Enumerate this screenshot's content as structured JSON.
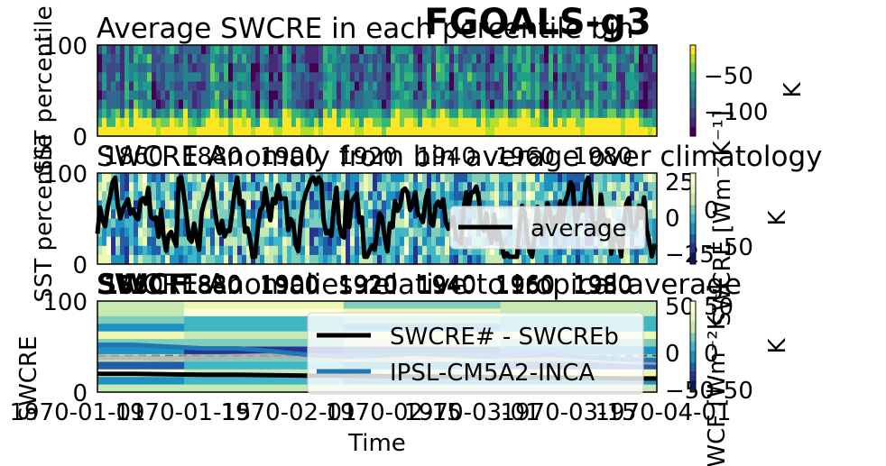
{
  "suptitle": "FGOALS-g3",
  "colors": {
    "black": "#000000",
    "blue": "#1f77b4",
    "grey": "#b0b0b0",
    "dash": "#555555",
    "viridis": [
      "#440154",
      "#482878",
      "#3e4989",
      "#31688e",
      "#26828e",
      "#1f9e89",
      "#35b779",
      "#6ece58",
      "#b5de2b",
      "#fde725"
    ],
    "ygb": [
      "#081d58",
      "#253494",
      "#225ea8",
      "#1d91c0",
      "#41b6c4",
      "#7fcdbb",
      "#c7e9b4",
      "#edf8b1",
      "#ffffd9"
    ]
  },
  "chart_data": [
    {
      "type": "heatmap",
      "title": "Average SWCRE in each percentile bin",
      "ylabel": "SST percentile",
      "ylim": [
        0,
        100
      ],
      "yticks": [
        "0",
        "100"
      ],
      "xticks": [
        "1860",
        "1880",
        "1900",
        "1920",
        "1940",
        "1960",
        "1980"
      ],
      "colormap": "viridis",
      "colorbar": {
        "label": "K",
        "range": [
          -130,
          -25
        ],
        "ticks": [
          "−50",
          "−100"
        ],
        "tick_values": [
          -50,
          -100
        ]
      }
    },
    {
      "type": "heatmap",
      "title": "SWCRE Anomaly from bin average over climatology",
      "ylabel": "SST percentile",
      "ylim": [
        0,
        100
      ],
      "yticks": [
        "0",
        "100"
      ],
      "xticks": [
        "1860",
        "1880",
        "1900",
        "1920",
        "1940",
        "1960",
        "1980"
      ],
      "colormap": "YlGnBu",
      "right_axis": {
        "label": "SWCRE [Wm⁻²K⁻¹]",
        "ticks": [
          "25",
          "0",
          "−25"
        ],
        "tick_values": [
          25,
          0,
          -25
        ],
        "range": [
          -30,
          30
        ]
      },
      "colorbar": {
        "label": "K",
        "range": [
          -80,
          20
        ],
        "ticks": [
          "0",
          "−50"
        ],
        "tick_values": [
          0,
          -50
        ]
      },
      "legend": {
        "placement": "lower-right",
        "entries": [
          {
            "name": "average",
            "color": "#000000"
          }
        ]
      }
    },
    {
      "type": "line",
      "title": "SWCRE Anomalies relative to tropical average",
      "overlay_titles": [
        "SWCF",
        "1860",
        "1880",
        "1900",
        "1920",
        "1940",
        "1960",
        "1980"
      ],
      "ylabel": "SWCRE",
      "ylim": [
        0,
        100
      ],
      "yticks": [
        "0",
        "100"
      ],
      "xlabel": "Time",
      "xticks": [
        "1970-01-01",
        "1970-01-15",
        "1970-02-01",
        "1970-02-15",
        "1970-03-01",
        "1970-03-15",
        "1970-04-01"
      ],
      "right_axis": {
        "label": "SWCF [Wm⁻²K⁻¹]",
        "ticks": [
          "50",
          "0",
          "−50"
        ],
        "tick_values": [
          50,
          0,
          -50
        ],
        "range": [
          -60,
          60
        ]
      },
      "colorbar": {
        "label": "K",
        "range": [
          -60,
          60
        ],
        "ticks": [
          "50",
          "0",
          "−50"
        ],
        "tick_values": [
          50,
          0,
          -50
        ]
      },
      "x": [
        0,
        6,
        12,
        18,
        24,
        30,
        36,
        42,
        48,
        54,
        60,
        66,
        72,
        78,
        84,
        90,
        96
      ],
      "series": [
        {
          "name": "SWCRE# - SWCREb",
          "color": "#000000",
          "values": [
            20,
            20,
            19.5,
            19,
            19,
            18.5,
            18,
            18,
            17.5,
            17,
            17,
            16.5,
            16,
            16,
            15.5,
            15,
            15
          ]
        },
        {
          "name": "IPSL-CM5A2-INCA",
          "color": "#1f77b4",
          "values": [
            52,
            52,
            50,
            48,
            48,
            45,
            41,
            39,
            40,
            42,
            41,
            39,
            40,
            41,
            38,
            36,
            35
          ]
        },
        {
          "name": "",
          "color": "#b0b0b0",
          "values": [
            38,
            38,
            37,
            38,
            39,
            40,
            39,
            38,
            37,
            38,
            39,
            38,
            37,
            38,
            36,
            34,
            33
          ]
        }
      ],
      "reference_line": 40,
      "legend": {
        "placement": "upper-right",
        "entries": [
          {
            "name": "SWCRE# - SWCREb",
            "color": "#000000"
          },
          {
            "name": "IPSL-CM5A2-INCA",
            "color": "#1f77b4"
          }
        ]
      }
    }
  ]
}
